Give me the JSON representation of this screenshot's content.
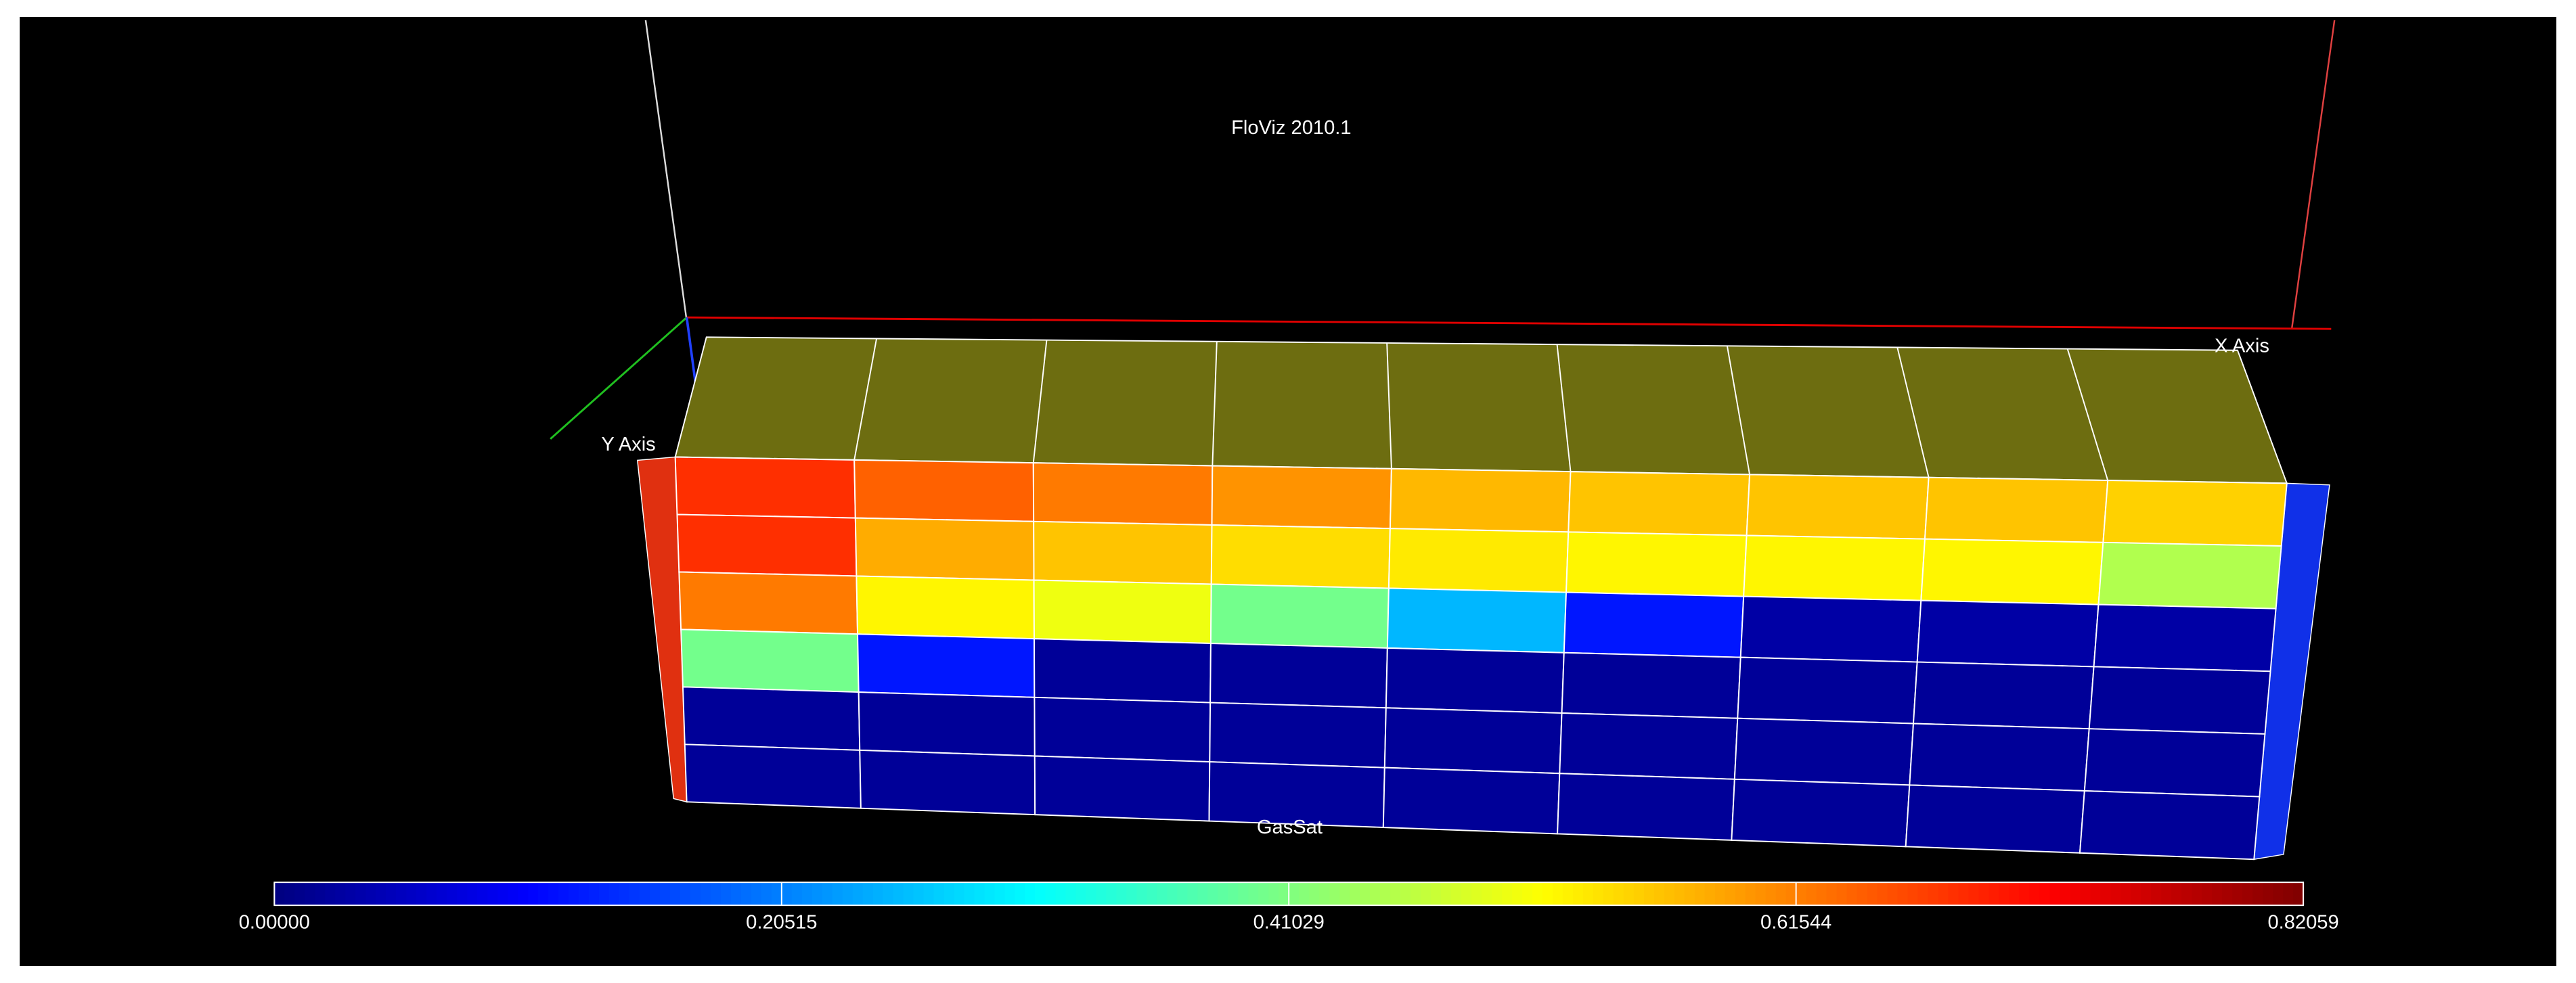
{
  "window": {
    "title": "FloViz 2010.1",
    "x_axis_label": "X Axis",
    "y_axis_label": "Y Axis"
  },
  "grid": {
    "property": "GasSat",
    "front_face_values": [
      [
        0.68,
        0.64,
        0.62,
        0.6,
        0.57,
        0.56,
        0.56,
        0.56,
        0.55
      ],
      [
        0.68,
        0.58,
        0.56,
        0.54,
        0.53,
        0.52,
        0.52,
        0.52,
        0.45
      ],
      [
        0.62,
        0.52,
        0.5,
        0.4,
        0.25,
        0.12,
        0.03,
        0.03,
        0.03
      ],
      [
        0.4,
        0.12,
        0.02,
        0.02,
        0.02,
        0.02,
        0.02,
        0.02,
        0.02
      ],
      [
        0.02,
        0.02,
        0.02,
        0.02,
        0.02,
        0.02,
        0.02,
        0.02,
        0.02
      ],
      [
        0.02,
        0.02,
        0.02,
        0.02,
        0.02,
        0.02,
        0.02,
        0.02,
        0.02
      ]
    ]
  },
  "colorbar": {
    "ticks": [
      {
        "value": 0,
        "label": "0.00000"
      },
      {
        "value": 0.20515,
        "label": "0.20515"
      },
      {
        "value": 0.41029,
        "label": "0.41029"
      },
      {
        "value": 0.61544,
        "label": "0.61544"
      },
      {
        "value": 0.82059,
        "label": "0.82059"
      }
    ]
  }
}
